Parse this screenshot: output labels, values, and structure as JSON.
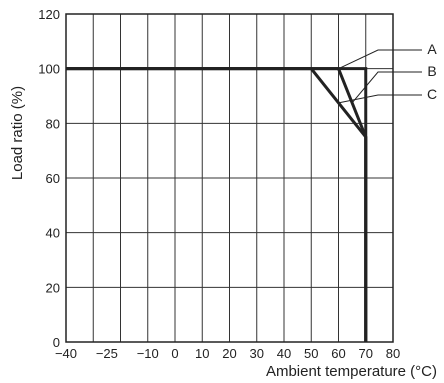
{
  "chart_data": {
    "type": "line",
    "xlabel": "Ambient temperature (°C)",
    "ylabel": "Load ratio (%)",
    "xlim": [
      -40,
      80
    ],
    "ylim": [
      0,
      120
    ],
    "x_ticks": [
      -40,
      -25,
      -10,
      0,
      10,
      20,
      30,
      40,
      50,
      60,
      70,
      80
    ],
    "x_tick_labels": [
      "−40",
      "−25",
      "−10",
      "0",
      "10",
      "20",
      "30",
      "40",
      "50",
      "60",
      "70",
      "80"
    ],
    "x_gridlines": [
      -40,
      -30,
      -20,
      -10,
      0,
      10,
      20,
      30,
      40,
      50,
      60,
      70,
      80
    ],
    "y_ticks": [
      0,
      20,
      40,
      60,
      80,
      100,
      120
    ],
    "y_tick_labels": [
      "0",
      "20",
      "40",
      "60",
      "80",
      "100",
      "120"
    ],
    "y_gridlines": [
      0,
      20,
      40,
      60,
      80,
      100,
      120
    ],
    "grid": true,
    "series": [
      {
        "name": "A",
        "x": [
          -40,
          60,
          70,
          70
        ],
        "y": [
          100,
          100,
          75,
          0
        ]
      },
      {
        "name": "B",
        "x": [
          -40,
          50,
          70,
          70
        ],
        "y": [
          100,
          100,
          75,
          0
        ]
      },
      {
        "name": "C",
        "x": [
          -40,
          70,
          70
        ],
        "y": [
          100,
          100,
          0
        ]
      }
    ],
    "callouts": [
      {
        "label": "A",
        "points_at": [
          60,
          100
        ]
      },
      {
        "label": "B",
        "points_at": [
          65,
          87.5
        ]
      },
      {
        "label": "C",
        "points_at": [
          60,
          87.5
        ]
      }
    ]
  }
}
